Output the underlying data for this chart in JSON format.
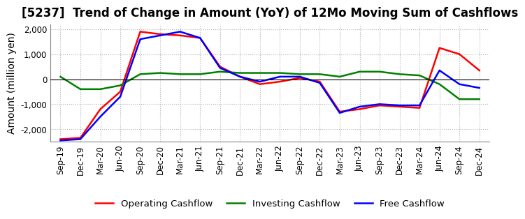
{
  "title": "[5237]  Trend of Change in Amount (YoY) of 12Mo Moving Sum of Cashflows",
  "ylabel": "Amount (million yen)",
  "ylim": [
    -2500,
    2200
  ],
  "yticks": [
    -2000,
    -1000,
    0,
    1000,
    2000
  ],
  "x_labels": [
    "Sep-19",
    "Dec-19",
    "Mar-20",
    "Jun-20",
    "Sep-20",
    "Dec-20",
    "Mar-21",
    "Jun-21",
    "Sep-21",
    "Dec-21",
    "Mar-22",
    "Jun-22",
    "Sep-22",
    "Dec-22",
    "Mar-23",
    "Jun-23",
    "Sep-23",
    "Dec-23",
    "Mar-24",
    "Jun-24",
    "Sep-24",
    "Dec-24"
  ],
  "operating": [
    -2400,
    -2350,
    -1200,
    -500,
    1900,
    1800,
    1750,
    1650,
    500,
    100,
    -200,
    -100,
    50,
    -100,
    -1300,
    -1200,
    -1050,
    -1100,
    -1150,
    1250,
    1000,
    350
  ],
  "investing": [
    100,
    -400,
    -400,
    -250,
    200,
    250,
    200,
    200,
    300,
    250,
    250,
    250,
    200,
    200,
    100,
    300,
    300,
    200,
    150,
    -200,
    -800,
    -800
  ],
  "free": [
    -2450,
    -2400,
    -1500,
    -700,
    1600,
    1750,
    1900,
    1650,
    450,
    100,
    -100,
    100,
    100,
    -150,
    -1350,
    -1100,
    -1000,
    -1050,
    -1050,
    350,
    -200,
    -350
  ],
  "operating_color": "#ff0000",
  "investing_color": "#008000",
  "free_color": "#0000ff",
  "grid_color": "#b0b0b0",
  "background_color": "#ffffff",
  "title_fontsize": 12,
  "axis_fontsize": 10,
  "tick_fontsize": 8.5
}
